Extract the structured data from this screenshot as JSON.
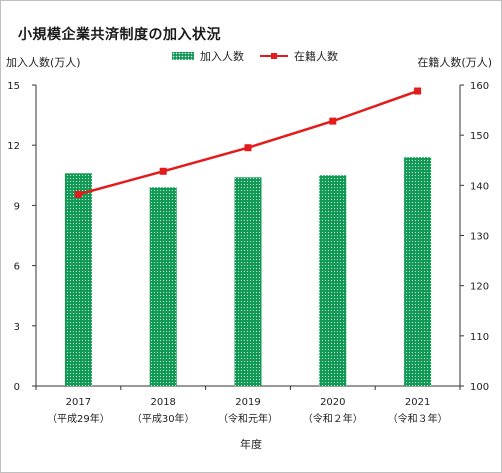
{
  "chart_data": {
    "type": "bar+line",
    "title": "小規模企業共済制度の加入状況",
    "xlabel": "年度",
    "ylabel_left": "加入人数(万人)",
    "ylabel_right": "在籍人数(万人)",
    "categories": [
      "2017",
      "2018",
      "2019",
      "2020",
      "2021"
    ],
    "category_sublabels": [
      "（平成29年）",
      "（平成30年）",
      "（令和元年）",
      "（令和２年）",
      "（令和３年）"
    ],
    "ylim_left": [
      0,
      15
    ],
    "yticks_left": [
      0,
      3,
      6,
      9,
      12,
      15
    ],
    "ylim_right": [
      100,
      160
    ],
    "yticks_right": [
      100,
      110,
      120,
      130,
      140,
      150,
      160
    ],
    "series": [
      {
        "name": "加入人数",
        "type": "bar",
        "axis": "left",
        "color": "#109a55",
        "values": [
          10.6,
          9.9,
          10.4,
          10.5,
          11.4
        ]
      },
      {
        "name": "在籍人数",
        "type": "line",
        "axis": "right",
        "color": "#e31b1b",
        "values": [
          138.2,
          142.8,
          147.5,
          152.8,
          158.8
        ]
      }
    ],
    "legend_position": "top-center",
    "grid": false
  }
}
